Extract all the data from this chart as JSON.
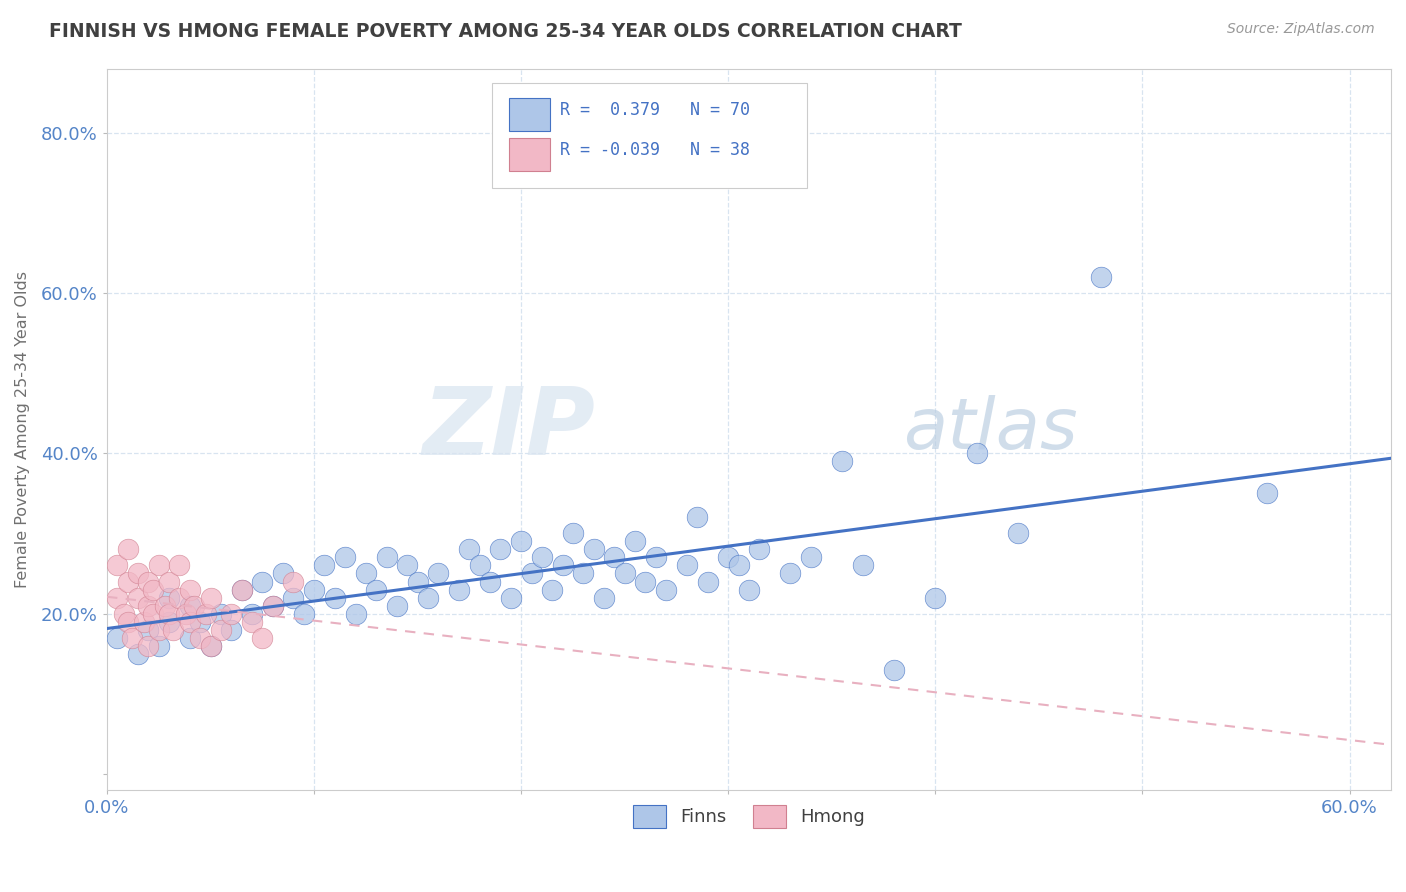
{
  "title": "FINNISH VS HMONG FEMALE POVERTY AMONG 25-34 YEAR OLDS CORRELATION CHART",
  "source": "Source: ZipAtlas.com",
  "ylabel": "Female Poverty Among 25-34 Year Olds",
  "xlim": [
    0.0,
    0.62
  ],
  "ylim": [
    -0.02,
    0.88
  ],
  "watermark_zip": "ZIP",
  "watermark_atlas": "atlas",
  "legend_finns": "Finns",
  "legend_hmong": "Hmong",
  "finns_R": 0.379,
  "finns_N": 70,
  "hmong_R": -0.039,
  "hmong_N": 38,
  "finns_color": "#aec6e8",
  "hmong_color": "#f2b8c6",
  "finns_line_color": "#4472c4",
  "hmong_line_color": "#e8b0c0",
  "title_color": "#404040",
  "axis_label_color": "#707070",
  "tick_color": "#5585c8",
  "legend_text_color": "#4472c4",
  "grid_color": "#d8e4f0",
  "grid_style": "--",
  "background_color": "#ffffff",
  "finns_x": [
    0.005,
    0.015,
    0.02,
    0.025,
    0.03,
    0.03,
    0.04,
    0.04,
    0.045,
    0.05,
    0.055,
    0.06,
    0.065,
    0.07,
    0.075,
    0.08,
    0.085,
    0.09,
    0.095,
    0.1,
    0.105,
    0.11,
    0.115,
    0.12,
    0.125,
    0.13,
    0.135,
    0.14,
    0.145,
    0.15,
    0.155,
    0.16,
    0.17,
    0.175,
    0.18,
    0.185,
    0.19,
    0.195,
    0.2,
    0.205,
    0.21,
    0.215,
    0.22,
    0.225,
    0.23,
    0.235,
    0.24,
    0.245,
    0.25,
    0.255,
    0.26,
    0.265,
    0.27,
    0.28,
    0.285,
    0.29,
    0.3,
    0.305,
    0.31,
    0.315,
    0.33,
    0.34,
    0.355,
    0.365,
    0.38,
    0.4,
    0.42,
    0.44,
    0.48,
    0.56
  ],
  "finns_y": [
    0.17,
    0.15,
    0.18,
    0.16,
    0.19,
    0.22,
    0.17,
    0.21,
    0.19,
    0.16,
    0.2,
    0.18,
    0.23,
    0.2,
    0.24,
    0.21,
    0.25,
    0.22,
    0.2,
    0.23,
    0.26,
    0.22,
    0.27,
    0.2,
    0.25,
    0.23,
    0.27,
    0.21,
    0.26,
    0.24,
    0.22,
    0.25,
    0.23,
    0.28,
    0.26,
    0.24,
    0.28,
    0.22,
    0.29,
    0.25,
    0.27,
    0.23,
    0.26,
    0.3,
    0.25,
    0.28,
    0.22,
    0.27,
    0.25,
    0.29,
    0.24,
    0.27,
    0.23,
    0.26,
    0.32,
    0.24,
    0.27,
    0.26,
    0.23,
    0.28,
    0.25,
    0.27,
    0.39,
    0.26,
    0.13,
    0.22,
    0.4,
    0.3,
    0.62,
    0.35
  ],
  "hmong_x": [
    0.005,
    0.005,
    0.008,
    0.01,
    0.01,
    0.01,
    0.012,
    0.015,
    0.015,
    0.018,
    0.02,
    0.02,
    0.02,
    0.022,
    0.022,
    0.025,
    0.025,
    0.028,
    0.03,
    0.03,
    0.032,
    0.035,
    0.035,
    0.038,
    0.04,
    0.04,
    0.042,
    0.045,
    0.048,
    0.05,
    0.05,
    0.055,
    0.06,
    0.065,
    0.07,
    0.075,
    0.08,
    0.09
  ],
  "hmong_y": [
    0.22,
    0.26,
    0.2,
    0.24,
    0.19,
    0.28,
    0.17,
    0.22,
    0.25,
    0.19,
    0.21,
    0.24,
    0.16,
    0.2,
    0.23,
    0.18,
    0.26,
    0.21,
    0.2,
    0.24,
    0.18,
    0.22,
    0.26,
    0.2,
    0.19,
    0.23,
    0.21,
    0.17,
    0.2,
    0.16,
    0.22,
    0.18,
    0.2,
    0.23,
    0.19,
    0.17,
    0.21,
    0.24
  ]
}
